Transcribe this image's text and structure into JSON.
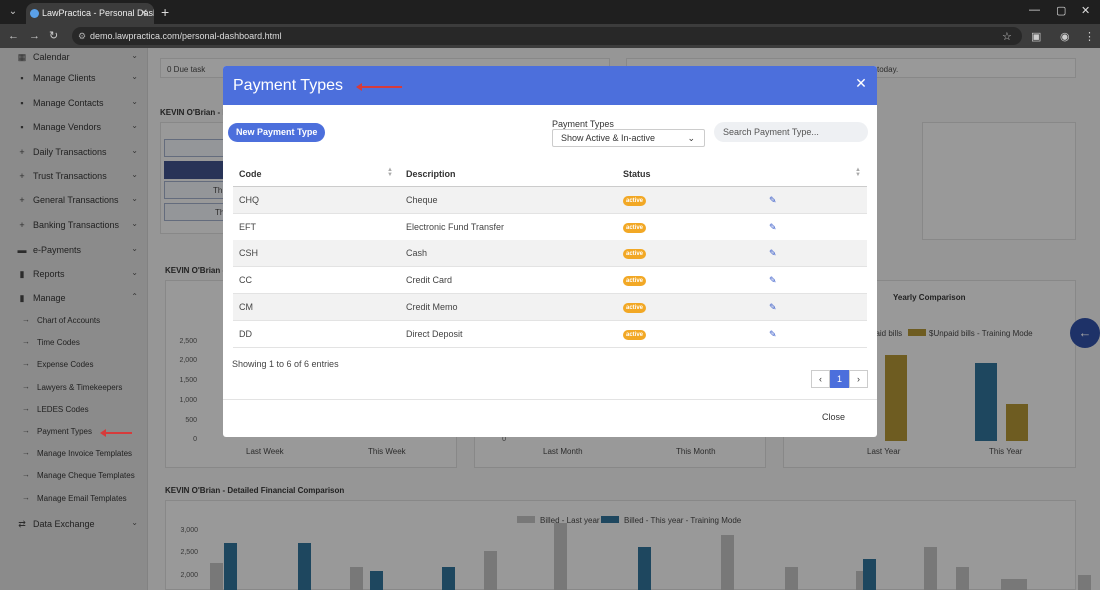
{
  "browser": {
    "tab_title": "LawPractica - Personal Dashboard",
    "url": "demo.lawpractica.com/personal-dashboard.html"
  },
  "sidebar": {
    "items": [
      {
        "label": "Calendar",
        "icon": "calendar-icon",
        "glyph": "▦"
      },
      {
        "label": "Manage Clients",
        "icon": "user-icon",
        "glyph": "▪"
      },
      {
        "label": "Manage Contacts",
        "icon": "contacts-icon",
        "glyph": "▪"
      },
      {
        "label": "Manage Vendors",
        "icon": "vendors-icon",
        "glyph": "▪"
      },
      {
        "label": "Daily Transactions",
        "icon": "plus-icon",
        "glyph": "+"
      },
      {
        "label": "Trust Transactions",
        "icon": "plus-icon",
        "glyph": "+"
      },
      {
        "label": "General Transactions",
        "icon": "plus-icon",
        "glyph": "+"
      },
      {
        "label": "Banking Transactions",
        "icon": "plus-icon",
        "glyph": "+"
      },
      {
        "label": "e-Payments",
        "icon": "card-icon",
        "glyph": "▬"
      },
      {
        "label": "Reports",
        "icon": "chart-icon",
        "glyph": "▮"
      },
      {
        "label": "Manage",
        "icon": "manage-icon",
        "glyph": "▮"
      }
    ],
    "sub_items": [
      "Chart of Accounts",
      "Time Codes",
      "Expense Codes",
      "Lawyers & Timekeepers",
      "LEDES Codes",
      "Payment Types",
      "Manage Invoice Templates",
      "Manage Cheque Templates",
      "Manage Email Templates"
    ],
    "bottom_item": {
      "label": "Data Exchange",
      "icon": "exchange-icon",
      "glyph": "⇄"
    }
  },
  "background": {
    "due_task": "0 Due task",
    "today_text": "today.",
    "home_title": "KEVIN O'Brian - Ho",
    "fin_title": "KEVIN O'Brian - F",
    "yearly_title": "Yearly Comparison",
    "yearly_legend": "paid bills",
    "yearly_legend2": "$Unpaid bills - Training Mode",
    "week_axis": [
      "2,500",
      "2,000",
      "1,500",
      "1,000",
      "500",
      "0"
    ],
    "week_labels": [
      "Last Week",
      "This Week"
    ],
    "month_axis_zero": "0",
    "month_labels": [
      "Last Month",
      "This Month"
    ],
    "year_labels": [
      "Last Year",
      "This Year"
    ],
    "ghost_btn_text": "Th",
    "detailed_title": "KEVIN O'Brian - Detailed Financial Comparison",
    "detailed_legend1": "Billed - Last year",
    "detailed_legend2": "Billed - This year - Training Mode",
    "detailed_axis": [
      "3,000",
      "2,500",
      "2,000"
    ]
  },
  "modal": {
    "title": "Payment Types",
    "new_button": "New Payment Type",
    "filter_label": "Payment Types",
    "filter_value": "Show Active & In-active",
    "search_placeholder": "Search Payment Type...",
    "columns": {
      "code": "Code",
      "description": "Description",
      "status": "Status"
    },
    "rows": [
      {
        "code": "CHQ",
        "description": "Cheque",
        "status": "active"
      },
      {
        "code": "EFT",
        "description": "Electronic Fund Transfer",
        "status": "active"
      },
      {
        "code": "CSH",
        "description": "Cash",
        "status": "active"
      },
      {
        "code": "CC",
        "description": "Credit Card",
        "status": "active"
      },
      {
        "code": "CM",
        "description": "Credit Memo",
        "status": "active"
      },
      {
        "code": "DD",
        "description": "Direct Deposit",
        "status": "active"
      }
    ],
    "showing": "Showing 1 to 6 of 6 entries",
    "current_page": "1",
    "close_button": "Close"
  },
  "colors": {
    "accent": "#4c6fdc",
    "badge": "#f2a825",
    "annotation_arrow": "#d63b3b"
  }
}
